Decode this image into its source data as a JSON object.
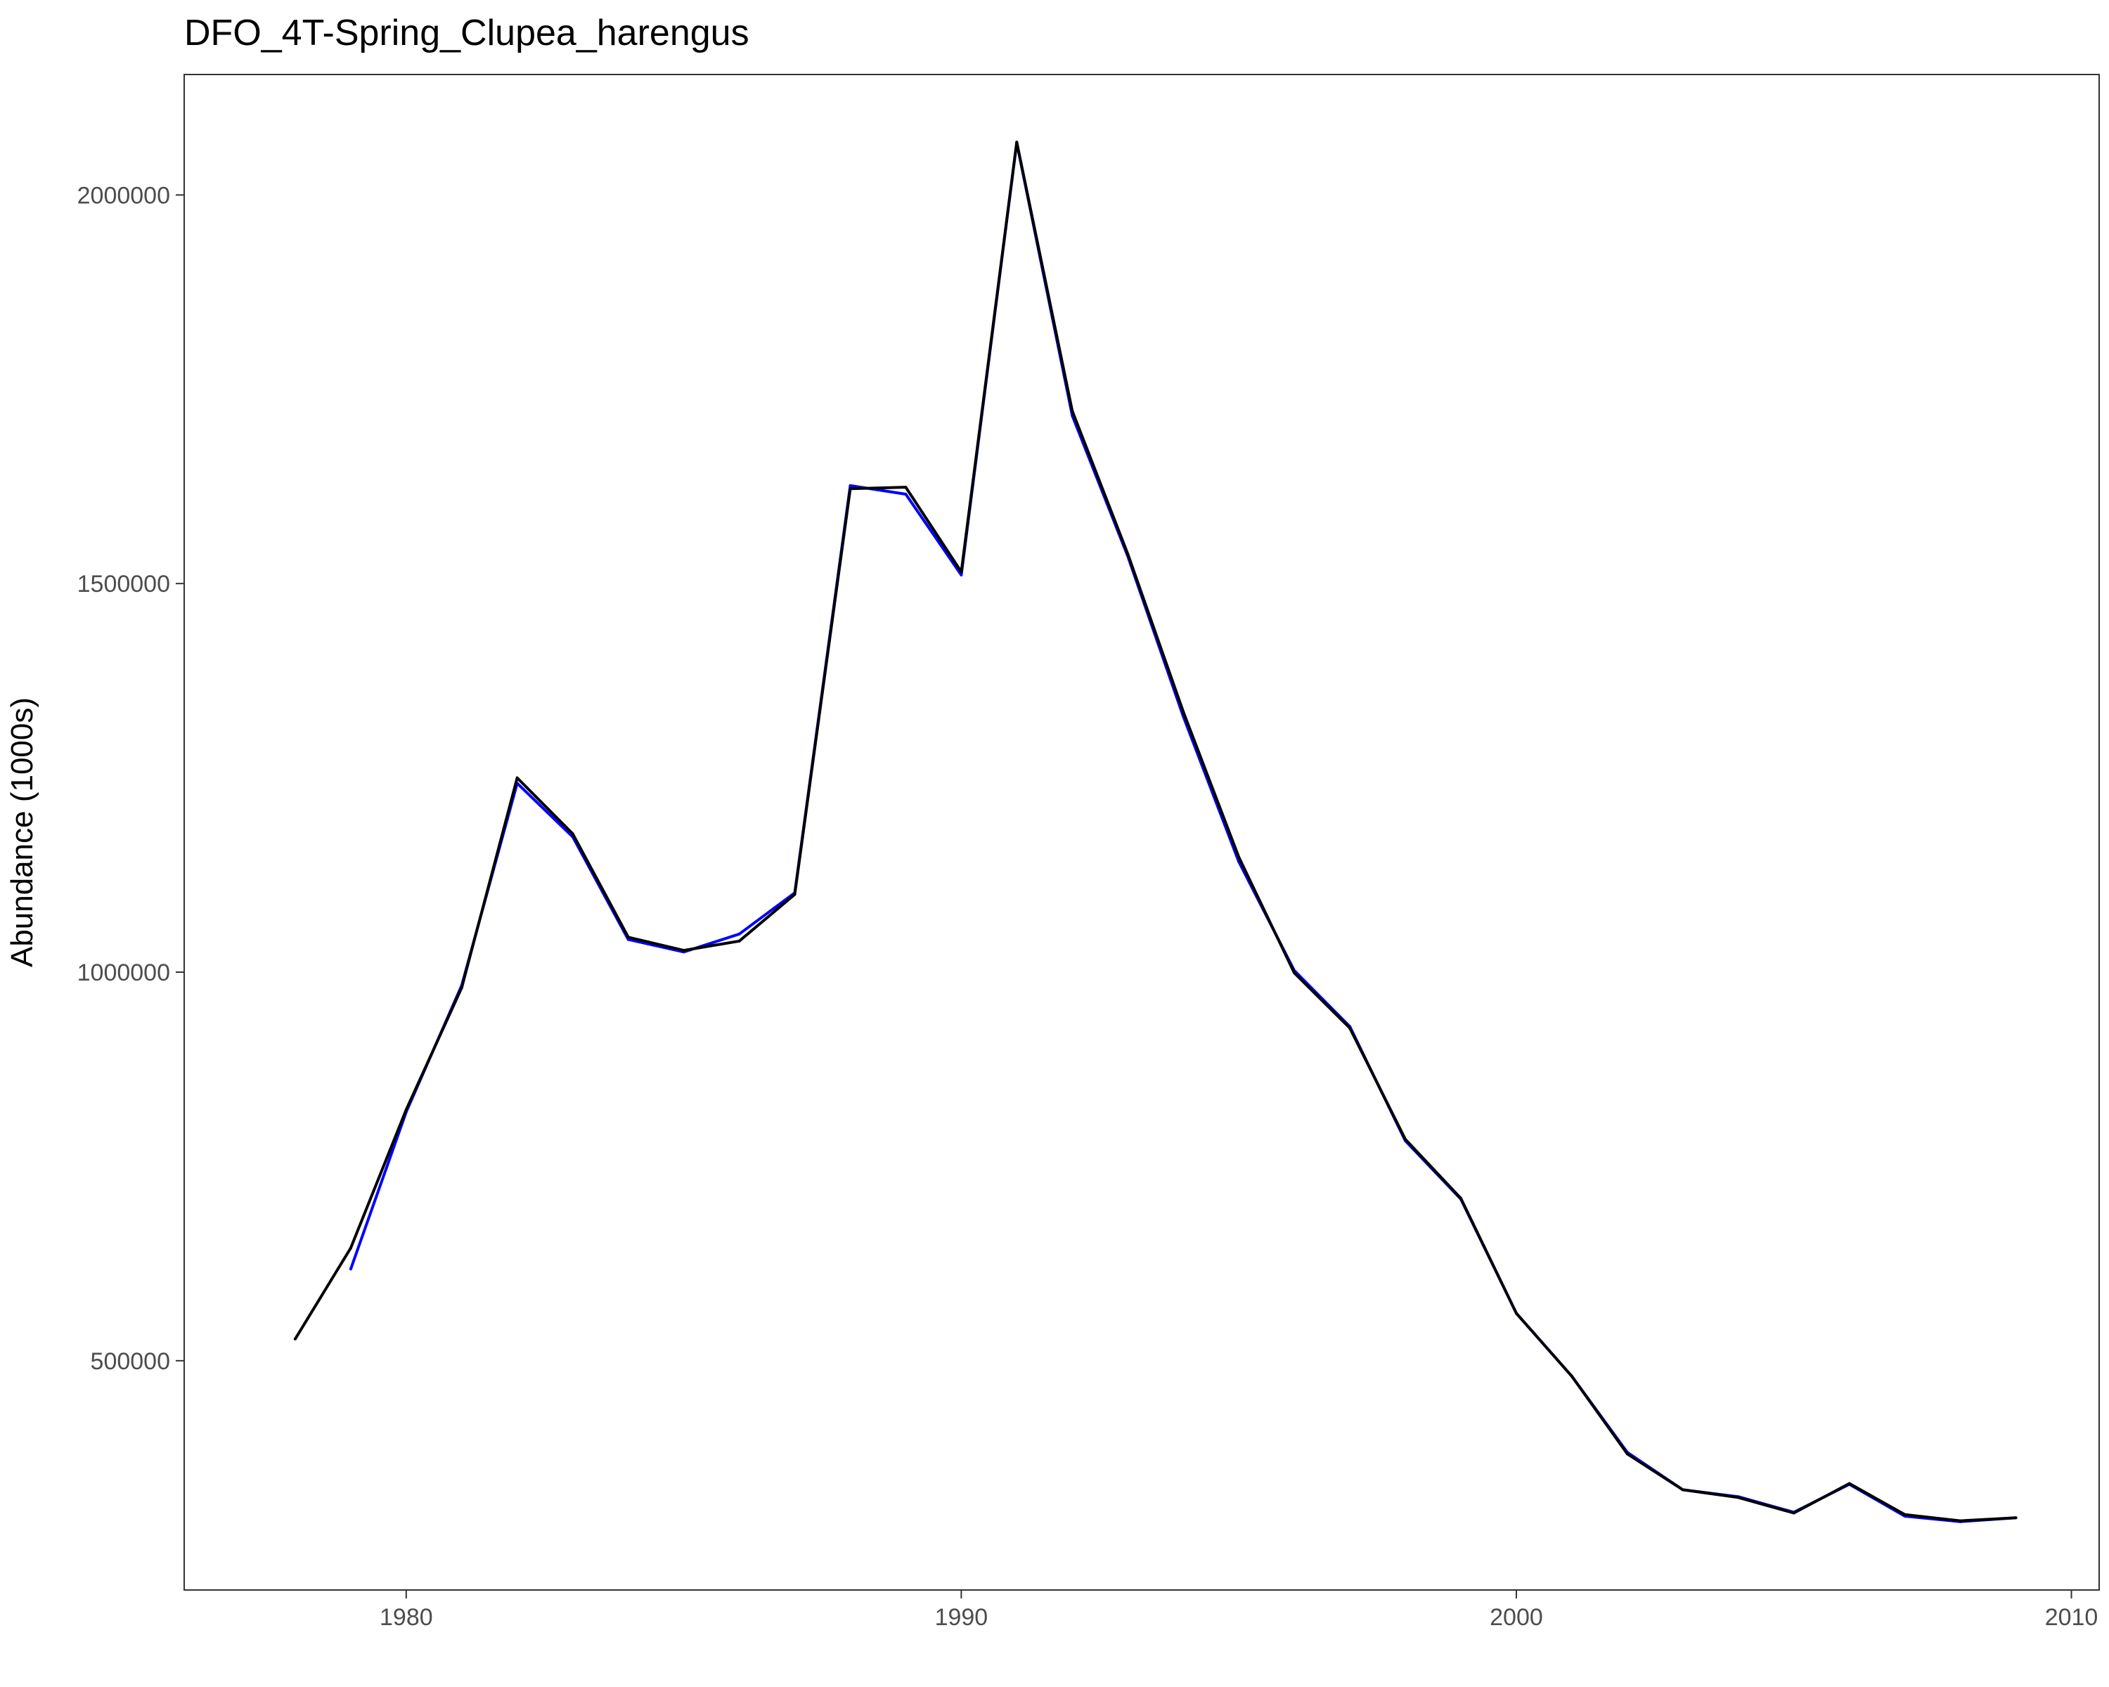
{
  "chart_data": {
    "type": "line",
    "title": "DFO_4T-Spring_Clupea_harengus",
    "xlabel": "",
    "ylabel": "Abundance (1000s)",
    "xlim": [
      1976,
      2010.5
    ],
    "ylim": [
      205000,
      2155000
    ],
    "xticks": [
      1980,
      1990,
      2000,
      2010
    ],
    "yticks": [
      500000,
      1000000,
      1500000,
      2000000
    ],
    "grid": false,
    "series": [
      {
        "color": "#0000ff",
        "x": [
          1979,
          1980,
          1981,
          1982,
          1983,
          1984,
          1985,
          1986,
          1987,
          1988,
          1989,
          1990,
          1991,
          1992,
          1993,
          1994,
          1995,
          1996,
          1997,
          1998,
          1999,
          2000,
          2001,
          2002,
          2003,
          2004,
          2005,
          2006,
          2007,
          2008,
          2009
        ],
        "y": [
          618000,
          820000,
          983000,
          1243000,
          1174000,
          1042000,
          1026000,
          1049000,
          1102000,
          1626000,
          1615000,
          1511000,
          2067000,
          1716000,
          1535000,
          1329000,
          1142000,
          1002000,
          930000,
          783000,
          708000,
          561000,
          480000,
          382000,
          334000,
          325000,
          305000,
          341000,
          300000,
          293000,
          298000
        ]
      },
      {
        "color": "#000000",
        "x": [
          1978,
          1979,
          1980,
          1981,
          1982,
          1983,
          1984,
          1985,
          1986,
          1987,
          1988,
          1989,
          1990,
          1991,
          1992,
          1993,
          1994,
          1995,
          1996,
          1997,
          1998,
          1999,
          2000,
          2001,
          2002,
          2003,
          2004,
          2005,
          2006,
          2007,
          2008,
          2009
        ],
        "y": [
          528000,
          645000,
          823000,
          980000,
          1250000,
          1178000,
          1045000,
          1028000,
          1040000,
          1100000,
          1622000,
          1624000,
          1515000,
          2068000,
          1722000,
          1538000,
          1335000,
          1148000,
          999000,
          928000,
          785000,
          709000,
          561000,
          480000,
          380000,
          334000,
          324000,
          304000,
          342000,
          302000,
          294000,
          298000
        ]
      }
    ]
  }
}
